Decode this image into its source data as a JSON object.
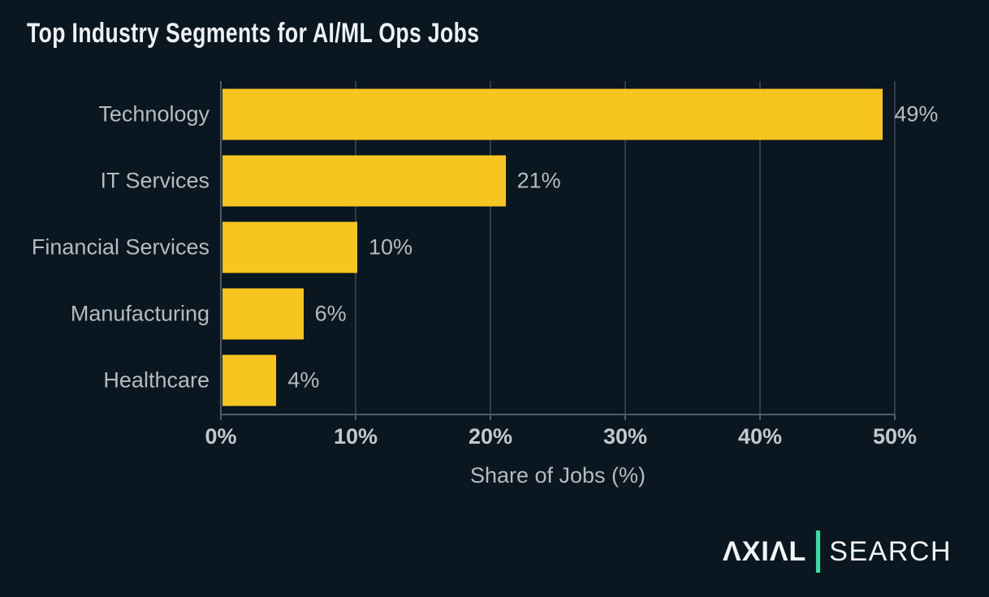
{
  "title": "Top Industry Segments for AI/ML Ops Jobs",
  "chart_data": {
    "type": "bar",
    "orientation": "horizontal",
    "title": "Top Industry Segments for AI/ML Ops Jobs",
    "categories": [
      "Technology",
      "IT Services",
      "Financial Services",
      "Manufacturing",
      "Healthcare"
    ],
    "values": [
      49,
      21,
      10,
      6,
      4
    ],
    "value_labels": [
      "49%",
      "21%",
      "10%",
      "6%",
      "4%"
    ],
    "xlabel": "Share of Jobs (%)",
    "xlim": [
      0,
      50
    ],
    "x_ticks": [
      0,
      10,
      20,
      30,
      40,
      50
    ],
    "x_tick_labels": [
      "0%",
      "10%",
      "20%",
      "30%",
      "40%",
      "50%"
    ],
    "grid": "vertical-gridlines-on",
    "legend": "none",
    "bar_color": "#f6c520",
    "label_color": "#b6bbc0"
  },
  "branding": {
    "brand_primary": "ΛXIΛL",
    "brand_secondary": "SEARCH",
    "divider_color": "#2ce3a2"
  },
  "colors": {
    "background": "#0a1620",
    "bar": "#f6c520",
    "gridline": "#323d48",
    "axis": "#525c66",
    "text": "#b6bbc0",
    "tick_text": "#c3c8cd",
    "title_text": "#eef1f3"
  }
}
